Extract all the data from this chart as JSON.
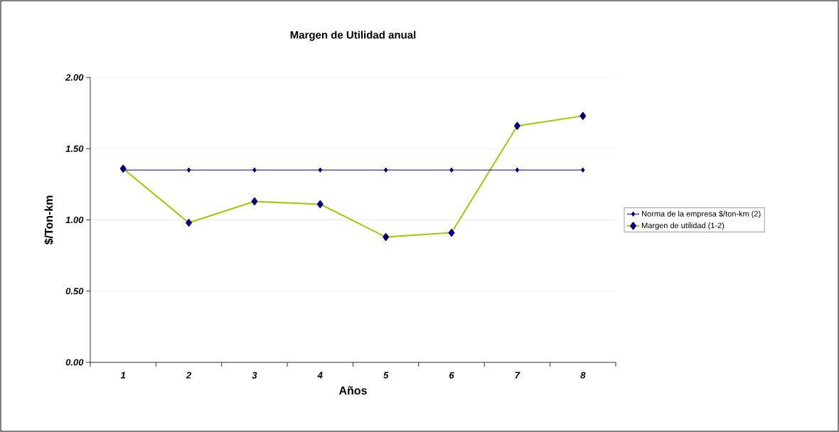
{
  "chart_data": {
    "type": "line",
    "title": "Margen de Utilidad anual",
    "xlabel": "Años",
    "ylabel": "$/Ton-km",
    "categories": [
      "1",
      "2",
      "3",
      "4",
      "5",
      "6",
      "7",
      "8"
    ],
    "series": [
      {
        "name": "Norma de la empresa $/ton-km (2)",
        "color": "#000080",
        "values": [
          1.35,
          1.35,
          1.35,
          1.35,
          1.35,
          1.35,
          1.35,
          1.35
        ]
      },
      {
        "name": "Margen de utilidad    (1-2)",
        "color": "#99cc00",
        "values": [
          1.36,
          0.98,
          1.13,
          1.11,
          0.88,
          0.91,
          1.66,
          1.73
        ]
      }
    ],
    "ylim": [
      0,
      2
    ],
    "yticks": [
      {
        "value": 0,
        "label": "0.00"
      },
      {
        "value": 0.5,
        "label": "0.50"
      },
      {
        "value": 1,
        "label": "1.00"
      },
      {
        "value": 1.5,
        "label": "1.50"
      },
      {
        "value": 2,
        "label": "2.00"
      }
    ],
    "grid": "y",
    "legend": "right",
    "marker": "diamond",
    "line_style": "solid"
  }
}
